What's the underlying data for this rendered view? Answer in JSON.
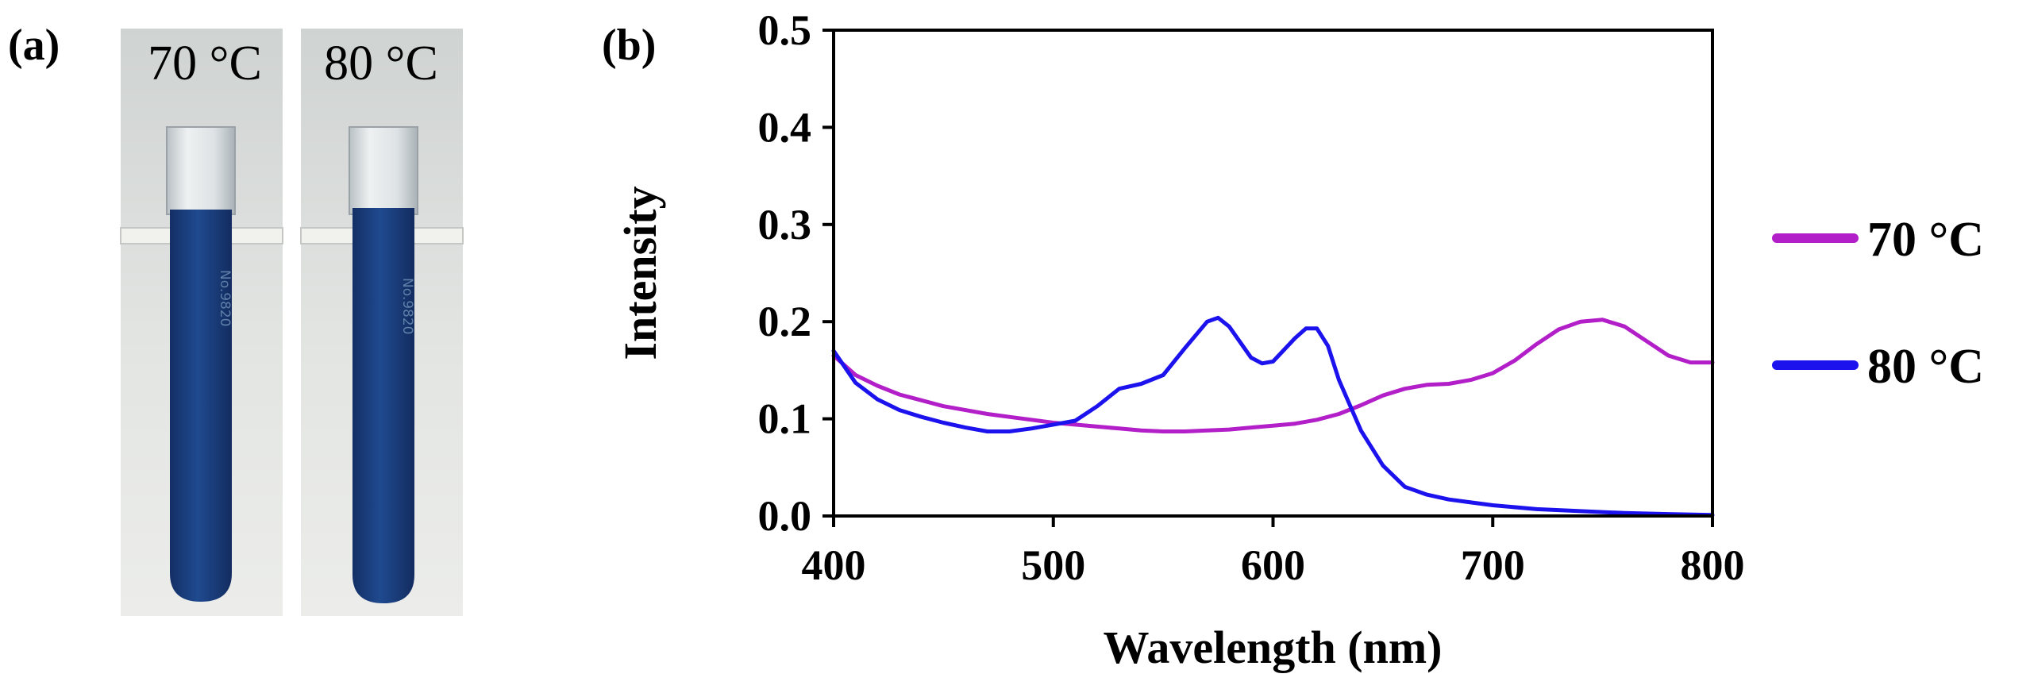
{
  "photo_panel": {
    "label": "(a)",
    "tubes": [
      {
        "label": "70 °C",
        "marking": "No.9820"
      },
      {
        "label": "80 °C",
        "marking": "No.9820"
      }
    ],
    "colors": {
      "liquid": "#1b3e7f",
      "background": "#dcdfdd"
    }
  },
  "chart_panel": {
    "label": "(b)"
  },
  "chart_data": {
    "type": "line",
    "title": "",
    "xlabel": "Wavelength (nm)",
    "ylabel": "Intensity",
    "xlim": [
      400,
      800
    ],
    "ylim": [
      0.0,
      0.5
    ],
    "xticks": [
      "400",
      "500",
      "600",
      "700",
      "800"
    ],
    "yticks": [
      "0.0",
      "0.1",
      "0.2",
      "0.3",
      "0.4",
      "0.5"
    ],
    "grid": false,
    "legend_position": "right",
    "series": [
      {
        "name": "70 °C",
        "color": "#b21ec8",
        "x": [
          400,
          410,
          420,
          430,
          440,
          450,
          460,
          470,
          480,
          490,
          500,
          510,
          520,
          530,
          540,
          550,
          560,
          570,
          580,
          590,
          600,
          610,
          620,
          630,
          640,
          650,
          660,
          670,
          680,
          690,
          700,
          710,
          720,
          730,
          740,
          750,
          760,
          770,
          780,
          790,
          800
        ],
        "y": [
          0.165,
          0.145,
          0.134,
          0.125,
          0.119,
          0.113,
          0.109,
          0.105,
          0.102,
          0.099,
          0.096,
          0.094,
          0.092,
          0.09,
          0.088,
          0.087,
          0.087,
          0.088,
          0.089,
          0.091,
          0.093,
          0.095,
          0.099,
          0.105,
          0.114,
          0.124,
          0.131,
          0.135,
          0.136,
          0.14,
          0.147,
          0.16,
          0.177,
          0.192,
          0.2,
          0.202,
          0.195,
          0.18,
          0.165,
          0.158,
          0.158
        ]
      },
      {
        "name": "80 °C",
        "color": "#1c12ee",
        "x": [
          400,
          410,
          420,
          430,
          440,
          450,
          460,
          470,
          480,
          490,
          500,
          510,
          520,
          530,
          540,
          550,
          560,
          570,
          575,
          580,
          590,
          595,
          600,
          610,
          615,
          620,
          625,
          630,
          640,
          650,
          660,
          670,
          680,
          690,
          700,
          720,
          740,
          760,
          780,
          800
        ],
        "y": [
          0.17,
          0.137,
          0.12,
          0.109,
          0.102,
          0.096,
          0.091,
          0.087,
          0.087,
          0.09,
          0.094,
          0.098,
          0.113,
          0.131,
          0.136,
          0.145,
          0.173,
          0.2,
          0.204,
          0.195,
          0.163,
          0.157,
          0.159,
          0.183,
          0.193,
          0.193,
          0.175,
          0.14,
          0.088,
          0.052,
          0.03,
          0.022,
          0.017,
          0.014,
          0.011,
          0.007,
          0.005,
          0.003,
          0.002,
          0.001
        ]
      }
    ]
  }
}
